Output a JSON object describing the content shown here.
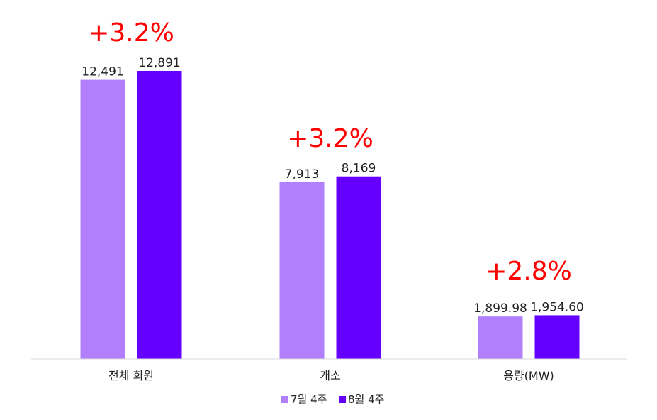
{
  "chart_data": {
    "type": "bar",
    "categories": [
      "전체 회원",
      "개소",
      "용량(MW)"
    ],
    "series": [
      {
        "name": "7월 4주",
        "color": "#b27ffc",
        "values": [
          12491,
          7913,
          1899.98
        ],
        "labels": [
          "12,491",
          "7,913",
          "1,899.98"
        ]
      },
      {
        "name": "8월 4주",
        "color": "#6500ff",
        "values": [
          12891,
          8169,
          1954.6
        ],
        "labels": [
          "12,891",
          "8,169",
          "1,954.60"
        ]
      }
    ],
    "annotations": [
      "+3.2%",
      "+3.2%",
      "+2.8%"
    ],
    "annotation_color": "#ff0000",
    "axis_line_color": "#d9d9d9",
    "legend": "bottom-center",
    "grid": false
  }
}
